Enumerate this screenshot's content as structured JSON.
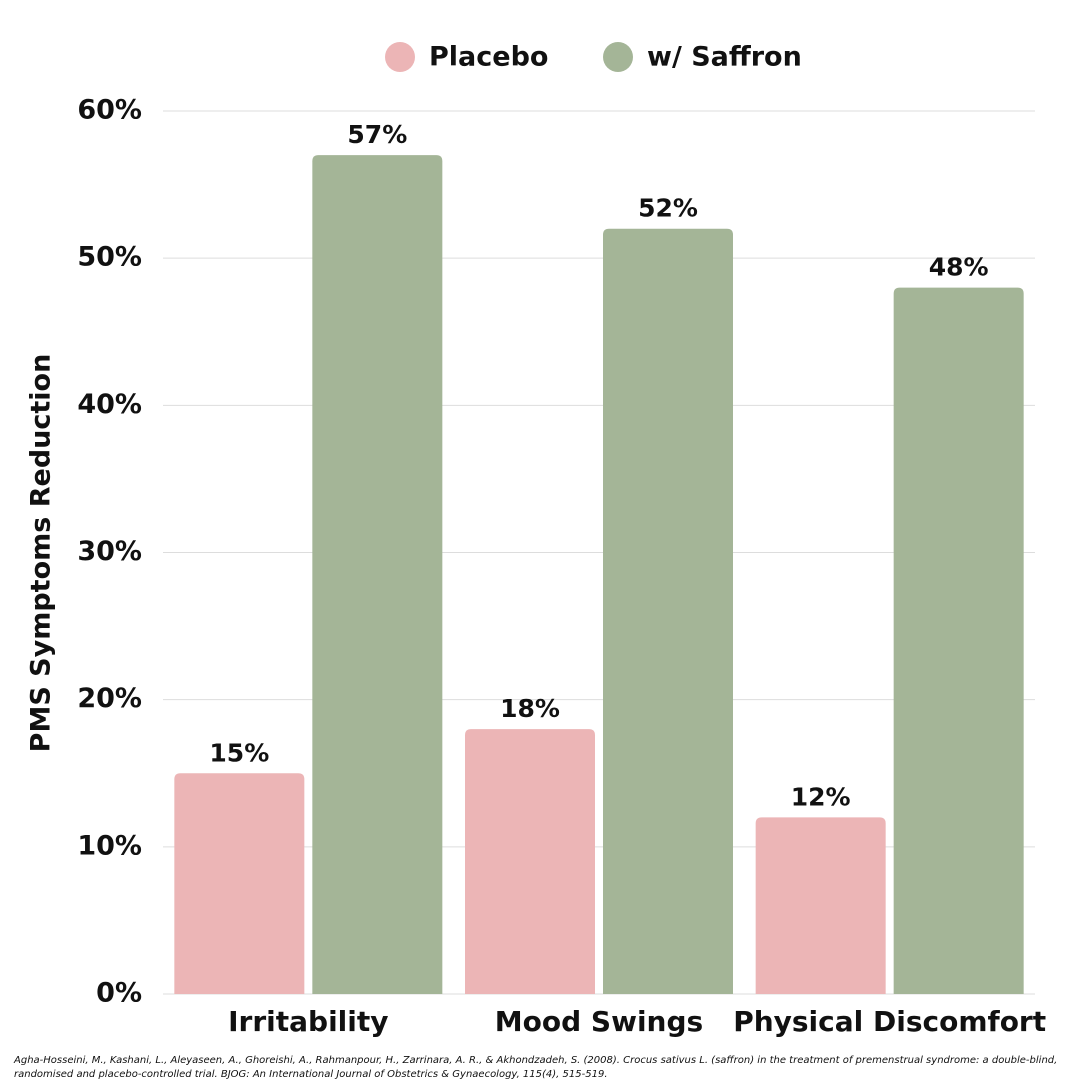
{
  "chart_data": {
    "type": "bar",
    "y_label": "PMS Symptoms Reduction",
    "categories": [
      "Irritability",
      "Mood Swings",
      "Physical Discomfort"
    ],
    "series": [
      {
        "name": "Placebo",
        "color": "#ecb5b6",
        "values": [
          15,
          18,
          12
        ],
        "value_labels": [
          "15%",
          "18%",
          "12%"
        ]
      },
      {
        "name": "w/ Saffron",
        "color": "#a4b597",
        "values": [
          57,
          52,
          48
        ],
        "value_labels": [
          "57%",
          "52%",
          "48%"
        ]
      }
    ],
    "ylim": [
      0,
      60
    ],
    "yticks": [
      {
        "value": 0,
        "label": "0%"
      },
      {
        "value": 10,
        "label": "10%"
      },
      {
        "value": 20,
        "label": "20%"
      },
      {
        "value": 30,
        "label": "30%"
      },
      {
        "value": 40,
        "label": "40%"
      },
      {
        "value": 50,
        "label": "50%"
      },
      {
        "value": 60,
        "label": "60%"
      }
    ],
    "grid": true,
    "legend": "top",
    "source": [
      "Agha-Hosseini, M., Kashani, L., Aleyaseen, A., Ghoreishi, A., Rahmanpour, H., Zarrinara, A. R., & Akhondzadeh, S. (2008). Crocus sativus L. (saffron) in the treatment of premenstrual syndrome: a double-blind,",
      "randomised and placebo-controlled trial. BJOG: An International Journal of Obstetrics & Gynaecology, 115(4), 515-519."
    ]
  }
}
